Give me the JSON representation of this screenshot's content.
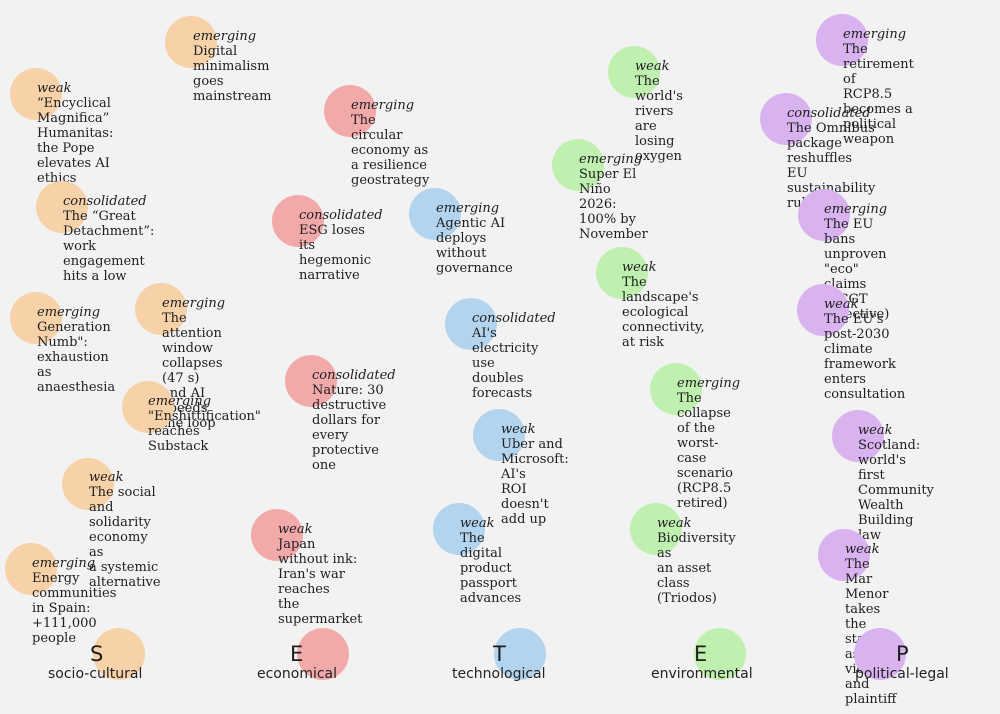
{
  "items": [
    {
      "cat": "s",
      "level": "emerging",
      "title": "Digital minimalism\ngoes mainstream"
    },
    {
      "cat": "s",
      "level": "weak",
      "title": "“Encyclical Magnifica”\nHumanitas: the Pope\nelevates AI ethics"
    },
    {
      "cat": "s",
      "level": "consolidated",
      "title": "The “Great Detachment”:\nwork engagement hits a low"
    },
    {
      "cat": "s",
      "level": "emerging",
      "title": "Generation\nNumb\":\nexhaustion as\nanaesthesia"
    },
    {
      "cat": "s",
      "level": "emerging",
      "title": "The attention window\ncollapses (47 s) and AI\nspeeds the loop"
    },
    {
      "cat": "s",
      "level": "emerging",
      "title": "\"Enshittification\"\nreaches Substack"
    },
    {
      "cat": "s",
      "level": "weak",
      "title": "The social and\nsolidarity economy as\na systemic alternative"
    },
    {
      "cat": "s",
      "level": "emerging",
      "title": "Energy communities\nin Spain: +111,000\npeople"
    },
    {
      "cat": "e",
      "level": "emerging",
      "title": "The circular economy as\na resilience geostrategy"
    },
    {
      "cat": "e",
      "level": "consolidated",
      "title": "ESG loses its\nhegemonic\nnarrative"
    },
    {
      "cat": "e",
      "level": "consolidated",
      "title": "Nature: 30 destructive\ndollars for every\nprotective one"
    },
    {
      "cat": "e",
      "level": "weak",
      "title": "Japan without ink:\nIran's war reaches\nthe supermarket"
    },
    {
      "cat": "t",
      "level": "emerging",
      "title": "Agentic AI deploys\nwithout governance"
    },
    {
      "cat": "t",
      "level": "consolidated",
      "title": "AI's electricity use\ndoubles forecasts"
    },
    {
      "cat": "t",
      "level": "weak",
      "title": "Uber and Microsoft: AI's\nROI doesn't add up"
    },
    {
      "cat": "t",
      "level": "weak",
      "title": "The digital product\npassport advances"
    },
    {
      "cat": "n",
      "level": "weak",
      "title": "The world's\nrivers are\nlosing oxygen"
    },
    {
      "cat": "n",
      "level": "emerging",
      "title": "Super El Niño\n2026: 100% by\nNovember"
    },
    {
      "cat": "n",
      "level": "weak",
      "title": "The landscape's\necological\nconnectivity, at risk"
    },
    {
      "cat": "n",
      "level": "emerging",
      "title": "The collapse of the\nworst-case scenario\n(RCP8.5 retired)"
    },
    {
      "cat": "n",
      "level": "weak",
      "title": "Biodiversity as\nan asset class\n(Triodos)"
    },
    {
      "cat": "p",
      "level": "emerging",
      "title": "The retirement of\nRCP8.5 becomes a\npolitical weapon"
    },
    {
      "cat": "p",
      "level": "consolidated",
      "title": "The Omnibus package\nreshuffles EU\nsustainability rules"
    },
    {
      "cat": "p",
      "level": "emerging",
      "title": "The EU bans unproven\n\"eco\" claims (ECGT\nDirective)"
    },
    {
      "cat": "p",
      "level": "weak",
      "title": "The EU's post-2030\nclimate framework\nenters consultation"
    },
    {
      "cat": "p",
      "level": "weak",
      "title": "Scotland: world's\nfirst Community\nWealth Building law"
    },
    {
      "cat": "p",
      "level": "weak",
      "title": "The Mar Menor\ntakes the stand as\nvictim and plaintiff"
    }
  ],
  "legend": [
    {
      "cat": "s",
      "letter": "S",
      "label": "socio-cultural",
      "color": "#f7d2a8"
    },
    {
      "cat": "e",
      "letter": "E",
      "label": "economical",
      "color": "#f2a9aa"
    },
    {
      "cat": "t",
      "letter": "T",
      "label": "technological",
      "color": "#b3d4ef"
    },
    {
      "cat": "n",
      "letter": "E",
      "label": "environmental",
      "color": "#bff0b0"
    },
    {
      "cat": "p",
      "letter": "P",
      "label": "political-legal",
      "color": "#d9b2f0"
    }
  ]
}
